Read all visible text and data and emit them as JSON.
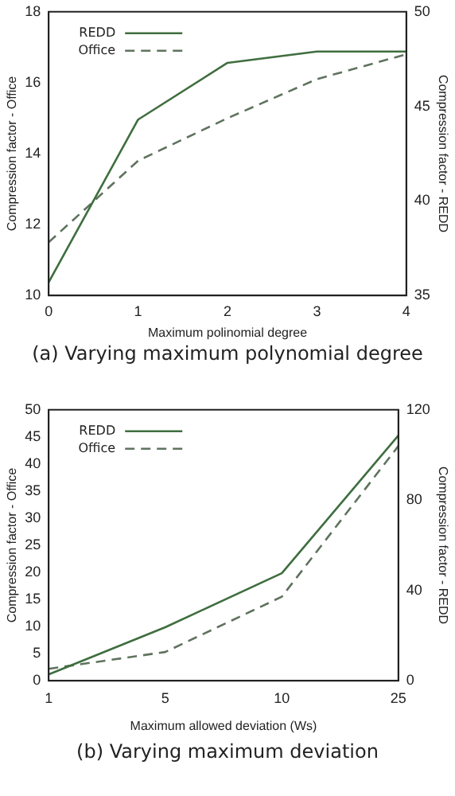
{
  "chart_data": [
    {
      "type": "line",
      "xlabel": "Maximum polinomial degree",
      "ylabel": "Compression factor - Office",
      "y2label": "Compression factor - REDD",
      "x": [
        0,
        1,
        2,
        3,
        4
      ],
      "xlim": [
        0,
        4
      ],
      "xticks": [
        0,
        1,
        2,
        3,
        4
      ],
      "ylim": [
        10,
        18
      ],
      "yticks": [
        10,
        12,
        14,
        16,
        18
      ],
      "y2lim": [
        35,
        50
      ],
      "y2ticks": [
        35,
        40,
        45,
        50
      ],
      "legend": "top left",
      "marker": "none",
      "annotations": [
        "(a) Varying maximum polynomial degree"
      ],
      "series": [
        {
          "name": "REDD",
          "color": "#3f6e3f",
          "values": [
            35.7,
            44.3,
            47.3,
            47.9,
            47.9
          ],
          "axis": "y2",
          "line_style": "solid"
        },
        {
          "name": "Office",
          "color": "#5f735f",
          "values": [
            11.5,
            13.8,
            15.0,
            16.1,
            16.8
          ],
          "line_style": "dashed"
        }
      ]
    },
    {
      "type": "line",
      "xlabel": "Maximum allowed deviation (Ws)",
      "ylabel": "Compression factor - Office",
      "y2label": "Compression factor - REDD",
      "categories": [
        "1",
        "5",
        "10",
        "25"
      ],
      "ylim": [
        0,
        50
      ],
      "yticks": [
        0,
        5,
        10,
        15,
        20,
        25,
        30,
        35,
        40,
        45,
        50
      ],
      "y2lim": [
        0,
        120
      ],
      "y2ticks": [
        0,
        40,
        80,
        120
      ],
      "legend": "top left",
      "marker": "none",
      "annotations": [
        "(b) Varying maximum deviation"
      ],
      "series": [
        {
          "name": "REDD",
          "color": "#3f6e3f",
          "values": [
            2.8,
            23.7,
            47.6,
            108.6
          ],
          "axis": "y2",
          "line_style": "solid"
        },
        {
          "name": "Office",
          "color": "#5f735f",
          "values": [
            2.2,
            5.3,
            15.5,
            43.3
          ],
          "line_style": "dashed"
        }
      ]
    }
  ]
}
